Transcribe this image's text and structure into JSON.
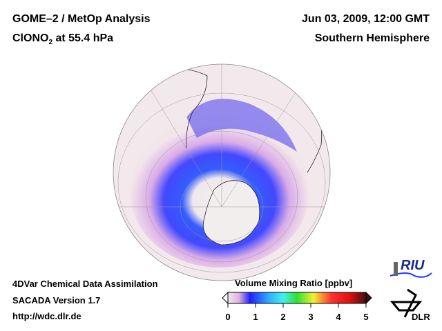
{
  "header": {
    "title_line1": "GOME–2 / MetOp Analysis",
    "species": "ClONO",
    "species_sub": "2",
    "level": " at 55.4 hPa",
    "date": "Jun 03, 2009, 12:00 GMT",
    "hemisphere": "Southern Hemisphere"
  },
  "footer": {
    "line1": "4DVar Chemical Data Assimilation",
    "line2": "SACADA Version 1.7",
    "line3": "http://wdc.dlr.de"
  },
  "colorbar": {
    "label": "Volume Mixing Ratio [ppbv]",
    "ticks": [
      "0",
      "1",
      "2",
      "3",
      "4",
      "5"
    ],
    "min": 0,
    "max": 5,
    "colors": [
      "#f2e8ec",
      "#e8b8e0",
      "#3030ff",
      "#1060ff",
      "#40e0f0",
      "#40e040",
      "#f0f030",
      "#f08030",
      "#ff2020",
      "#e01010",
      "#401010"
    ]
  },
  "logos": {
    "riu": "RIU",
    "dlr": "DLR"
  }
}
